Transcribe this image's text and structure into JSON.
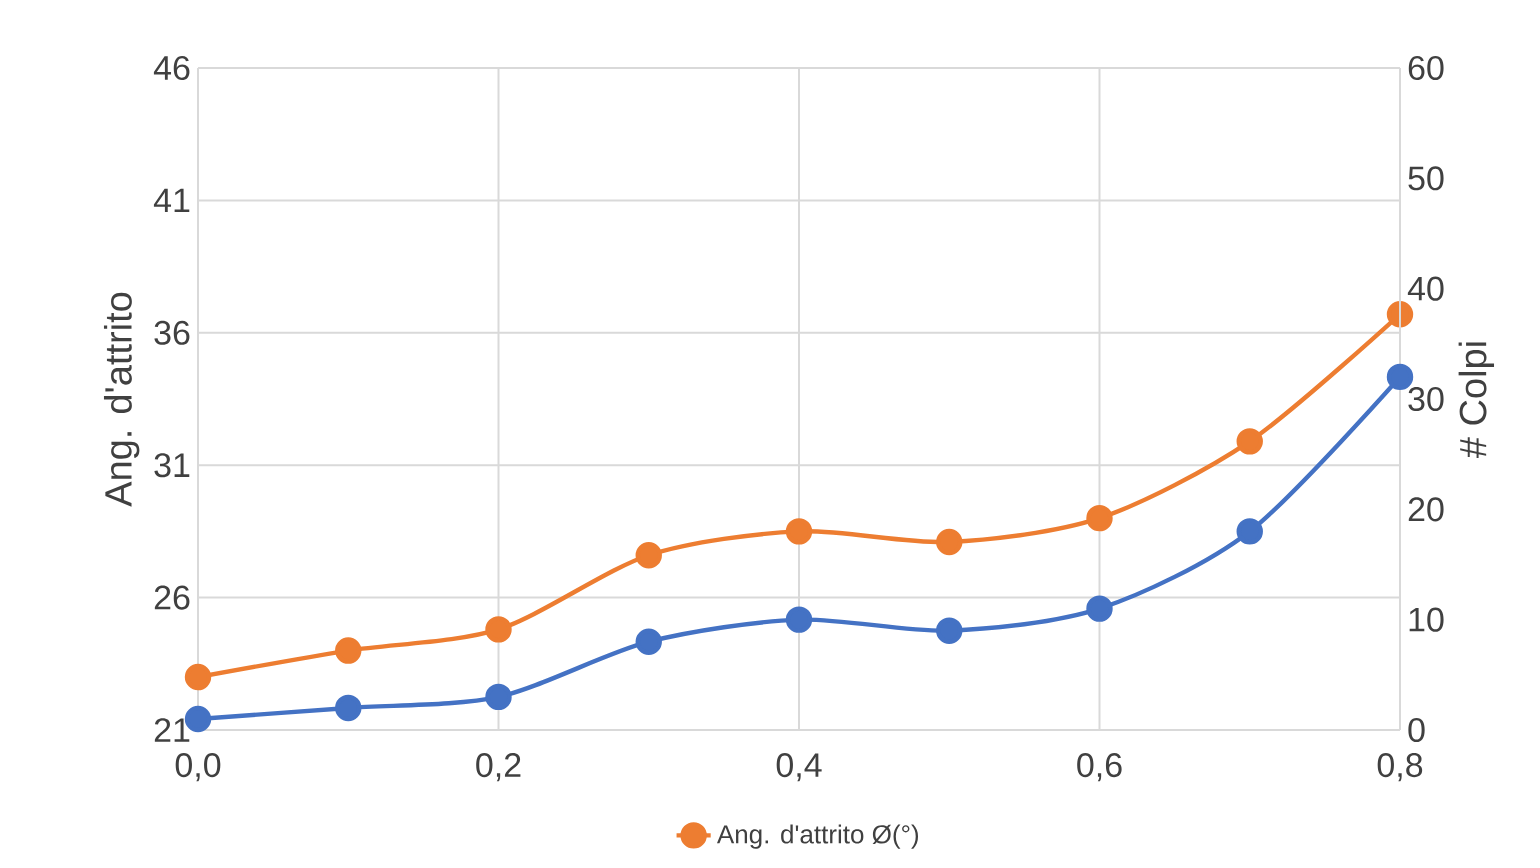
{
  "chart_data": {
    "type": "line",
    "xlabel": null,
    "ylabel": "Ang. d'attrito",
    "y2label": "# Colpi",
    "x": [
      0.0,
      0.1,
      0.2,
      0.3,
      0.4,
      0.5,
      0.6,
      0.7,
      0.8
    ],
    "series": [
      {
        "name": "Ang. d'attrito Ø(°)",
        "color": "#ed7d31",
        "values": [
          23.0,
          24.0,
          24.8,
          27.6,
          28.5,
          28.1,
          29.0,
          31.9,
          36.7
        ]
      },
      {
        "color": "#4472c4",
        "axis": "y2",
        "values": [
          1,
          2,
          3,
          8,
          10,
          9,
          11,
          18,
          32
        ]
      }
    ],
    "xlim": [
      0,
      0.8
    ],
    "xticks": [
      {
        "value": 0,
        "label": "0,0"
      },
      {
        "value": 0.2,
        "label": "0,2"
      },
      {
        "value": 0.4,
        "label": "0,4"
      },
      {
        "value": 0.6,
        "label": "0,6"
      },
      {
        "value": 0.8,
        "label": "0,8"
      }
    ],
    "ylim": [
      21,
      46
    ],
    "yticks": [
      21,
      26,
      31,
      36,
      41,
      46
    ],
    "y2lim": [
      0,
      60
    ],
    "y2ticks": [
      0,
      10,
      20,
      30,
      40,
      50,
      60
    ],
    "grid": true,
    "legend": "bottom",
    "marker": "circle",
    "line_style": "solid"
  }
}
